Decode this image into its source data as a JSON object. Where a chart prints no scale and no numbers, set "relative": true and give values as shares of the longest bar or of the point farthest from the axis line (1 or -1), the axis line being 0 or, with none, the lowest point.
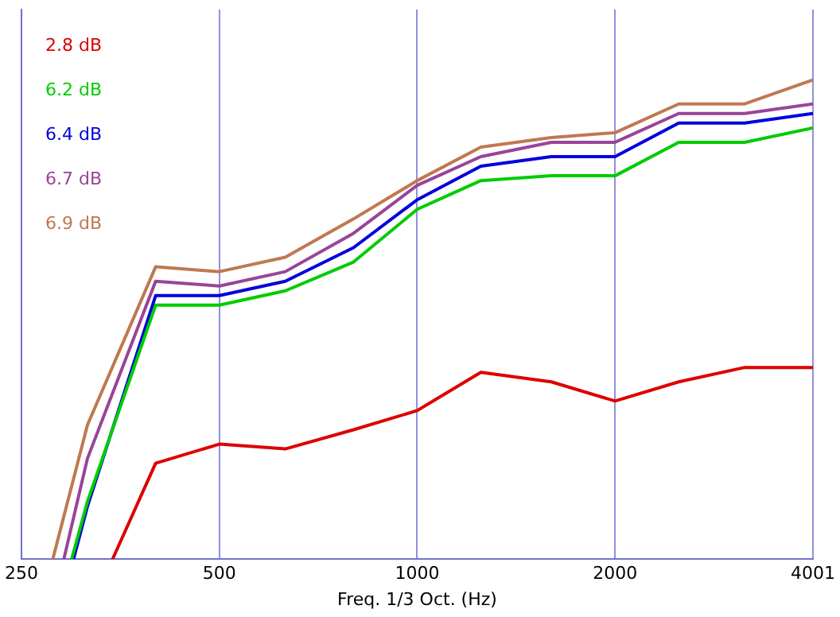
{
  "chart_data": {
    "type": "line",
    "xlabel": "Freq. 1/3 Oct. (Hz)",
    "log": "x",
    "xlim": [
      250,
      4001
    ],
    "xticks": [
      250,
      500,
      1000,
      2000,
      4001
    ],
    "relative": true,
    "grid": "x",
    "legend": "top left",
    "marker": "none",
    "line_style": "solid",
    "series": [
      {
        "name": "2.8 dB",
        "color": "#dd0000",
        "x": [
          344,
          400,
          500,
          630,
          800,
          1000,
          1250,
          1600,
          2000,
          2500,
          3150,
          4000
        ],
        "values": [
          0,
          0.2,
          0.24,
          0.23,
          0.27,
          0.31,
          0.39,
          0.37,
          0.33,
          0.37,
          0.4,
          0.4
        ]
      },
      {
        "name": "6.2 dB",
        "color": "#00cc00",
        "x": [
          298,
          315,
          400,
          500,
          630,
          800,
          1000,
          1250,
          1600,
          2000,
          2500,
          3150,
          4000
        ],
        "values": [
          0,
          0.12,
          0.53,
          0.53,
          0.56,
          0.62,
          0.73,
          0.79,
          0.8,
          0.8,
          0.87,
          0.87,
          0.9
        ]
      },
      {
        "name": "6.4 dB",
        "color": "#0000dd",
        "x": [
          300,
          315,
          400,
          500,
          630,
          800,
          1000,
          1250,
          1600,
          2000,
          2500,
          3150,
          4000
        ],
        "values": [
          0,
          0.11,
          0.55,
          0.55,
          0.58,
          0.65,
          0.75,
          0.82,
          0.84,
          0.84,
          0.91,
          0.91,
          0.93
        ]
      },
      {
        "name": "6.7 dB",
        "color": "#994499",
        "x": [
          290,
          315,
          400,
          500,
          630,
          800,
          1000,
          1250,
          1600,
          2000,
          2500,
          3150,
          4000
        ],
        "values": [
          0,
          0.21,
          0.58,
          0.57,
          0.6,
          0.68,
          0.78,
          0.84,
          0.87,
          0.87,
          0.93,
          0.93,
          0.95
        ]
      },
      {
        "name": "6.9 dB",
        "color": "#c07850",
        "x": [
          279,
          315,
          400,
          500,
          630,
          800,
          1000,
          1250,
          1600,
          2000,
          2500,
          3150,
          4000
        ],
        "values": [
          0,
          0.28,
          0.61,
          0.6,
          0.63,
          0.71,
          0.79,
          0.86,
          0.88,
          0.89,
          0.95,
          0.95,
          1
        ]
      }
    ]
  }
}
